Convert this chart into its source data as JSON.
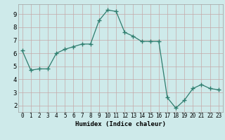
{
  "x": [
    0,
    1,
    2,
    3,
    4,
    5,
    6,
    7,
    8,
    9,
    10,
    11,
    12,
    13,
    14,
    15,
    16,
    17,
    18,
    19,
    20,
    21,
    22,
    23
  ],
  "y": [
    6.2,
    4.7,
    4.8,
    4.8,
    6.0,
    6.3,
    6.5,
    6.7,
    6.7,
    8.5,
    9.3,
    9.2,
    7.6,
    7.3,
    6.9,
    6.9,
    6.9,
    2.6,
    1.8,
    2.4,
    3.3,
    3.6,
    3.3,
    3.2
  ],
  "xlabel": "Humidex (Indice chaleur)",
  "ylim": [
    1.5,
    9.75
  ],
  "xlim": [
    -0.5,
    23.5
  ],
  "line_color": "#2e7d6e",
  "marker": "+",
  "marker_size": 4,
  "bg_color": "#ceeaea",
  "grid_color": "#c4a8a8",
  "yticks": [
    2,
    3,
    4,
    5,
    6,
    7,
    8,
    9
  ],
  "xticks": [
    0,
    1,
    2,
    3,
    4,
    5,
    6,
    7,
    8,
    9,
    10,
    11,
    12,
    13,
    14,
    15,
    16,
    17,
    18,
    19,
    20,
    21,
    22,
    23
  ]
}
